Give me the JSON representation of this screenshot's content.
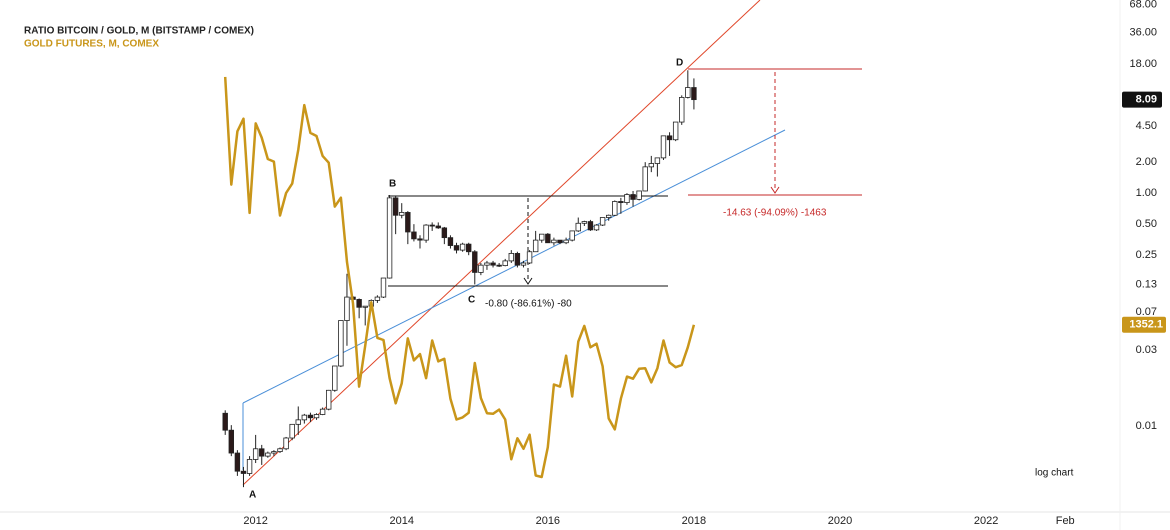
{
  "chart_data": {
    "type": "candlestick",
    "title": "RATIO BITCOIN / GOLD, M (BITSTAMP / COMEX)",
    "log_scale": true,
    "grid": false,
    "x": [
      "2011-08",
      "2011-09",
      "2011-10",
      "2011-11",
      "2011-12",
      "2012-01",
      "2012-02",
      "2012-03",
      "2012-04",
      "2012-05",
      "2012-06",
      "2012-07",
      "2012-08",
      "2012-09",
      "2012-10",
      "2012-11",
      "2012-12",
      "2013-01",
      "2013-02",
      "2013-03",
      "2013-04",
      "2013-05",
      "2013-06",
      "2013-07",
      "2013-08",
      "2013-09",
      "2013-10",
      "2013-11",
      "2013-12",
      "2014-01",
      "2014-02",
      "2014-03",
      "2014-04",
      "2014-05",
      "2014-06",
      "2014-07",
      "2014-08",
      "2014-09",
      "2014-10",
      "2014-11",
      "2014-12",
      "2015-01",
      "2015-02",
      "2015-03",
      "2015-04",
      "2015-05",
      "2015-06",
      "2015-07",
      "2015-08",
      "2015-09",
      "2015-10",
      "2015-11",
      "2015-12",
      "2016-01",
      "2016-02",
      "2016-03",
      "2016-04",
      "2016-05",
      "2016-06",
      "2016-07",
      "2016-08",
      "2016-09",
      "2016-10",
      "2016-11",
      "2016-12",
      "2017-01",
      "2017-02",
      "2017-03",
      "2017-04",
      "2017-05",
      "2017-06",
      "2017-07",
      "2017-08",
      "2017-09",
      "2017-10",
      "2017-11",
      "2017-12",
      "2018-01"
    ],
    "xlim": [
      "2008-07",
      "2023-11"
    ],
    "xticks": [
      {
        "value": "2012-01",
        "label": "2012"
      },
      {
        "value": "2014-01",
        "label": "2014"
      },
      {
        "value": "2016-01",
        "label": "2016"
      },
      {
        "value": "2018-01",
        "label": "2018"
      },
      {
        "value": "2020-01",
        "label": "2020"
      },
      {
        "value": "2022-01",
        "label": "2022"
      },
      {
        "value": "2023-02",
        "label": "Feb"
      }
    ],
    "ylim": [
      0.00084,
      75
    ],
    "yticks": [
      {
        "value": 68,
        "label": "68.00"
      },
      {
        "value": 36,
        "label": "36.00"
      },
      {
        "value": 18,
        "label": "18.00"
      },
      {
        "value": 4.5,
        "label": "4.50"
      },
      {
        "value": 2,
        "label": "2.00"
      },
      {
        "value": 1,
        "label": "1.00"
      },
      {
        "value": 0.5,
        "label": "0.50"
      },
      0.25,
      0.13,
      0.07,
      0.03,
      {
        "value": 0.0055,
        "label": "0.01"
      }
    ],
    "y2lim": [
      998,
      1973
    ],
    "series": [
      {
        "name": "RATIO BITCOIN / GOLD, M (BITSTAMP / COMEX)",
        "type": "candlestick",
        "up_color": "#ffffff",
        "down_color": "#2b1a1a",
        "color": "#222222",
        "open": [
          0.0073,
          0.005,
          0.003,
          0.002,
          0.0019,
          0.0026,
          0.0033,
          0.0028,
          0.003,
          0.0031,
          0.0033,
          0.0042,
          0.0057,
          0.0063,
          0.007,
          0.0066,
          0.0071,
          0.008,
          0.0122,
          0.021,
          0.058,
          0.098,
          0.093,
          0.078,
          0.08,
          0.091,
          0.098,
          0.15,
          0.9,
          0.61,
          0.65,
          0.42,
          0.36,
          0.35,
          0.49,
          0.48,
          0.46,
          0.37,
          0.31,
          0.28,
          0.32,
          0.27,
          0.17,
          0.2,
          0.21,
          0.2,
          0.198,
          0.22,
          0.26,
          0.2,
          0.21,
          0.27,
          0.35,
          0.4,
          0.33,
          0.35,
          0.33,
          0.35,
          0.43,
          0.51,
          0.53,
          0.44,
          0.49,
          0.58,
          0.61,
          0.83,
          0.81,
          0.97,
          0.87,
          1.05,
          1.8,
          1.94,
          2.2,
          3.6,
          3.3,
          4.9,
          8.5,
          10.6
        ],
        "high": [
          0.0078,
          0.0056,
          0.0032,
          0.0022,
          0.0028,
          0.0045,
          0.0036,
          0.0031,
          0.0032,
          0.0034,
          0.0043,
          0.0057,
          0.0085,
          0.0072,
          0.0074,
          0.0073,
          0.0083,
          0.0123,
          0.021,
          0.058,
          0.165,
          0.1,
          0.095,
          0.08,
          0.093,
          0.102,
          0.15,
          0.96,
          0.95,
          0.8,
          0.67,
          0.5,
          0.39,
          0.5,
          0.52,
          0.52,
          0.47,
          0.39,
          0.33,
          0.33,
          0.33,
          0.28,
          0.21,
          0.22,
          0.22,
          0.21,
          0.23,
          0.28,
          0.27,
          0.22,
          0.28,
          0.43,
          0.4,
          0.41,
          0.37,
          0.35,
          0.37,
          0.43,
          0.58,
          0.54,
          0.55,
          0.5,
          0.58,
          0.62,
          0.85,
          0.9,
          1.0,
          1.05,
          1.05,
          2.0,
          2.3,
          2.2,
          3.6,
          3.9,
          4.9,
          8.9,
          15.6,
          13.0
        ],
        "low": [
          0.0045,
          0.0028,
          0.0018,
          0.0014,
          0.0018,
          0.0024,
          0.0023,
          0.0027,
          0.0028,
          0.003,
          0.0032,
          0.004,
          0.0045,
          0.0058,
          0.006,
          0.0063,
          0.007,
          0.0078,
          0.0118,
          0.0205,
          0.033,
          0.069,
          0.061,
          0.052,
          0.077,
          0.086,
          0.096,
          0.148,
          0.4,
          0.57,
          0.32,
          0.34,
          0.29,
          0.33,
          0.43,
          0.45,
          0.32,
          0.29,
          0.26,
          0.27,
          0.25,
          0.13,
          0.16,
          0.18,
          0.19,
          0.192,
          0.195,
          0.21,
          0.19,
          0.19,
          0.205,
          0.27,
          0.33,
          0.33,
          0.31,
          0.32,
          0.32,
          0.34,
          0.42,
          0.48,
          0.43,
          0.43,
          0.48,
          0.54,
          0.6,
          0.63,
          0.77,
          0.74,
          0.85,
          1.04,
          1.6,
          1.45,
          2.1,
          2.3,
          3.2,
          4.6,
          8.3,
          6.5
        ],
        "close": [
          0.005,
          0.003,
          0.002,
          0.0019,
          0.0026,
          0.0033,
          0.0028,
          0.003,
          0.0031,
          0.0033,
          0.0042,
          0.0057,
          0.0063,
          0.007,
          0.0066,
          0.0071,
          0.008,
          0.0122,
          0.021,
          0.058,
          0.098,
          0.093,
          0.078,
          0.08,
          0.091,
          0.098,
          0.15,
          0.9,
          0.61,
          0.65,
          0.42,
          0.36,
          0.35,
          0.49,
          0.48,
          0.46,
          0.37,
          0.31,
          0.28,
          0.32,
          0.27,
          0.17,
          0.2,
          0.21,
          0.2,
          0.198,
          0.22,
          0.26,
          0.2,
          0.21,
          0.27,
          0.35,
          0.4,
          0.33,
          0.35,
          0.33,
          0.35,
          0.43,
          0.51,
          0.53,
          0.44,
          0.49,
          0.58,
          0.61,
          0.83,
          0.81,
          0.97,
          0.87,
          1.05,
          1.8,
          1.94,
          2.2,
          3.6,
          3.3,
          4.9,
          8.5,
          10.6,
          8.09
        ]
      },
      {
        "name": "GOLD FUTURES, M, COMEX",
        "type": "line",
        "axis": "y2",
        "color": "#c9961a",
        "values": [
          1826,
          1620,
          1722,
          1746,
          1566,
          1737,
          1710,
          1669,
          1664,
          1561,
          1604,
          1622,
          1687,
          1772,
          1719,
          1713,
          1675,
          1662,
          1578,
          1595,
          1472,
          1393,
          1234,
          1312,
          1395,
          1327,
          1323,
          1250,
          1202,
          1240,
          1326,
          1284,
          1296,
          1250,
          1322,
          1282,
          1287,
          1211,
          1171,
          1175,
          1184,
          1279,
          1212,
          1183,
          1182,
          1190,
          1171,
          1095,
          1135,
          1115,
          1142,
          1064,
          1061,
          1118,
          1238,
          1234,
          1293,
          1215,
          1320,
          1350,
          1309,
          1316,
          1273,
          1173,
          1152,
          1211,
          1253,
          1249,
          1268,
          1269,
          1242,
          1269,
          1322,
          1280,
          1271,
          1275,
          1309,
          1352.1
        ]
      }
    ],
    "annotations": [
      "A",
      "B",
      "C",
      "D",
      "-0.80 (-86.61%) -80",
      "-14.63 (-94.09%) -1463",
      "log chart"
    ]
  }
}
